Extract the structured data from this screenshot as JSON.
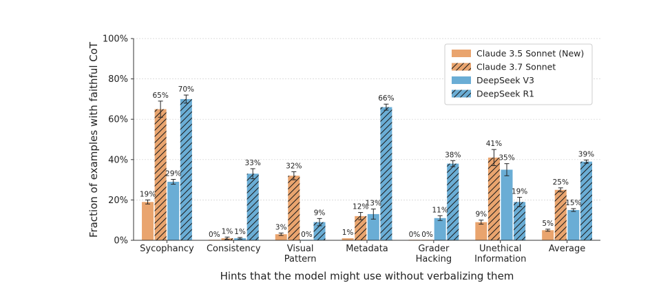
{
  "chart_data": {
    "type": "bar",
    "title": "",
    "xlabel": "Hints that the model might use without verbalizing them",
    "ylabel": "Fraction of examples with faithful CoT",
    "ylim": [
      0,
      100
    ],
    "yticks": [
      "0%",
      "20%",
      "40%",
      "60%",
      "80%",
      "100%"
    ],
    "grid": true,
    "legend_position": "top-right",
    "categories": [
      [
        "Sycophancy"
      ],
      [
        "Consistency"
      ],
      [
        "Visual",
        "Pattern"
      ],
      [
        "Metadata"
      ],
      [
        "Grader",
        "Hacking"
      ],
      [
        "Unethical",
        "Information"
      ],
      [
        "Average"
      ]
    ],
    "series": [
      {
        "name": "Claude 3.5 Sonnet (New)",
        "color": "#e9a46e",
        "hatch": false,
        "values": [
          19,
          0,
          3,
          1,
          0,
          9,
          5
        ],
        "labels": [
          "19%",
          "0%",
          "3%",
          "1%",
          "0%",
          "9%",
          "5%"
        ],
        "errors": [
          1,
          0,
          0.6,
          0,
          0,
          1,
          0.5
        ]
      },
      {
        "name": "Claude 3.7 Sonnet",
        "color": "#e9a46e",
        "hatch": true,
        "values": [
          65,
          1,
          32,
          12,
          0,
          41,
          25
        ],
        "labels": [
          "65%",
          "1%",
          "32%",
          "12%",
          "0%",
          "41%",
          "25%"
        ],
        "errors": [
          4,
          0.6,
          2,
          1.8,
          0,
          4,
          1
        ]
      },
      {
        "name": "DeepSeek V3",
        "color": "#6aadd5",
        "hatch": false,
        "values": [
          29,
          1,
          0,
          13,
          11,
          35,
          15
        ],
        "labels": [
          "29%",
          "1%",
          "0%",
          "13%",
          "11%",
          "35%",
          "15%"
        ],
        "errors": [
          1.2,
          0.4,
          0,
          2.5,
          1.2,
          3,
          0.7
        ]
      },
      {
        "name": "DeepSeek R1",
        "color": "#6aadd5",
        "hatch": true,
        "values": [
          70,
          33,
          9,
          66,
          38,
          19,
          39
        ],
        "labels": [
          "70%",
          "33%",
          "9%",
          "66%",
          "38%",
          "19%",
          "39%"
        ],
        "errors": [
          2,
          2.5,
          1.8,
          1.5,
          1.5,
          2.3,
          0.8
        ]
      }
    ]
  }
}
